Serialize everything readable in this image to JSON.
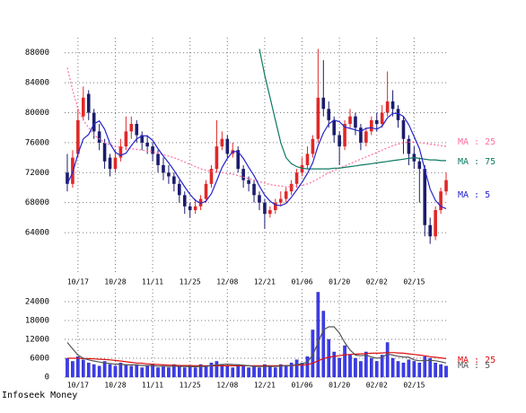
{
  "footer": "Infoseek Money",
  "chart_data": [
    {
      "type": "candlestick",
      "categories": [
        null,
        null,
        "10/17",
        null,
        null,
        null,
        null,
        null,
        null,
        "10/28",
        null,
        null,
        null,
        null,
        null,
        null,
        "11/11",
        null,
        null,
        null,
        null,
        null,
        null,
        "11/25",
        null,
        null,
        null,
        null,
        null,
        null,
        "12/08",
        null,
        null,
        null,
        null,
        null,
        null,
        "12/21",
        null,
        null,
        null,
        null,
        null,
        null,
        "01/06",
        null,
        null,
        null,
        null,
        null,
        null,
        "01/20",
        null,
        null,
        null,
        null,
        null,
        null,
        "02/02",
        null,
        null,
        null,
        null,
        null,
        null,
        "02/15",
        null,
        null,
        null,
        null,
        null,
        null
      ],
      "open": [
        72000,
        70500,
        74500,
        79500,
        82500,
        80000,
        77500,
        76000,
        74000,
        72500,
        74000,
        75500,
        77500,
        78500,
        77000,
        76000,
        75500,
        74500,
        73000,
        72000,
        71500,
        70500,
        69000,
        67500,
        67000,
        67500,
        68500,
        70500,
        72500,
        75500,
        76500,
        74500,
        75000,
        72500,
        71000,
        70500,
        69000,
        68000,
        66500,
        67000,
        68000,
        68500,
        69500,
        70500,
        72000,
        73000,
        74500,
        76500,
        82000,
        80500,
        79000,
        77000,
        75500,
        78500,
        79500,
        78000,
        76000,
        77500,
        79000,
        78500,
        80000,
        81500,
        80500,
        79000,
        76500,
        74500,
        73500,
        72500,
        65000,
        63500,
        67000,
        69500
      ],
      "high": [
        74500,
        75000,
        80500,
        83500,
        83000,
        80500,
        78500,
        76500,
        74500,
        75000,
        76500,
        79500,
        79500,
        79000,
        77500,
        77000,
        76000,
        75000,
        74000,
        73000,
        72000,
        71000,
        69500,
        68000,
        68500,
        69000,
        71000,
        73000,
        79000,
        77500,
        77000,
        76000,
        75500,
        73000,
        71500,
        71000,
        69500,
        68500,
        67500,
        68500,
        69500,
        70000,
        71000,
        72500,
        74000,
        75500,
        77000,
        88500,
        87000,
        81500,
        79500,
        77500,
        79000,
        80500,
        80000,
        78500,
        78000,
        79500,
        80000,
        81000,
        85500,
        83000,
        81000,
        79500,
        77000,
        75500,
        74000,
        73000,
        66000,
        67500,
        70000,
        72000
      ],
      "low": [
        69500,
        70000,
        74000,
        79000,
        79000,
        76500,
        75000,
        72500,
        71500,
        72000,
        73500,
        75000,
        76500,
        76000,
        75000,
        74500,
        73500,
        72000,
        71000,
        70500,
        69500,
        68000,
        66500,
        66000,
        66500,
        67000,
        68000,
        70000,
        72000,
        75000,
        74000,
        74000,
        72000,
        70000,
        69500,
        68000,
        67000,
        64500,
        66000,
        66500,
        67500,
        68000,
        69000,
        70000,
        71500,
        72500,
        74000,
        76000,
        79500,
        78000,
        76000,
        73000,
        75000,
        78000,
        77000,
        75000,
        75500,
        77000,
        77500,
        78000,
        79500,
        79500,
        78000,
        74500,
        73000,
        72500,
        68000,
        63500,
        62500,
        63000,
        66500,
        69000
      ],
      "close": [
        70500,
        74000,
        79000,
        82000,
        80000,
        77500,
        76000,
        73500,
        72500,
        74000,
        75500,
        77500,
        78500,
        77000,
        76000,
        75500,
        74500,
        73000,
        72000,
        71500,
        70500,
        69000,
        67500,
        67000,
        67500,
        68500,
        70500,
        72500,
        75500,
        76500,
        74500,
        75000,
        72500,
        71000,
        70500,
        69000,
        68000,
        66500,
        67000,
        68000,
        68500,
        69500,
        70500,
        72000,
        73000,
        74500,
        76500,
        82000,
        80500,
        79000,
        77000,
        75500,
        78500,
        79500,
        78000,
        76000,
        77500,
        79000,
        78500,
        80000,
        81500,
        80500,
        79000,
        76500,
        74500,
        73500,
        72500,
        65000,
        63500,
        67000,
        69500,
        71000
      ],
      "up_color": "#e02828",
      "down_color": "#1c1c6e",
      "series": [
        {
          "name": "MA : 25",
          "color": "#ff6f9c",
          "dashed": true,
          "values": [
            86000,
            83000,
            80500,
            79000,
            78000,
            77000,
            76500,
            76000,
            75700,
            75500,
            75400,
            75300,
            75200,
            75100,
            75000,
            74900,
            74800,
            74600,
            74400,
            74200,
            74000,
            73700,
            73400,
            73100,
            72800,
            72500,
            72300,
            72200,
            72100,
            72000,
            71900,
            71800,
            71600,
            71400,
            71200,
            71000,
            70800,
            70600,
            70400,
            70300,
            70200,
            70100,
            70100,
            70200,
            70300,
            70500,
            70800,
            71200,
            71600,
            72000,
            72300,
            72600,
            72900,
            73200,
            73500,
            73800,
            74100,
            74400,
            74700,
            75000,
            75300,
            75600,
            75800,
            76000,
            76100,
            76100,
            76000,
            75900,
            75800,
            75700,
            75600,
            75500
          ]
        },
        {
          "name": "MA : 75",
          "color": "#0e7a62",
          "values": [
            null,
            null,
            null,
            null,
            null,
            null,
            null,
            null,
            null,
            null,
            null,
            null,
            null,
            null,
            null,
            null,
            null,
            null,
            null,
            null,
            null,
            null,
            null,
            null,
            null,
            null,
            null,
            null,
            null,
            null,
            null,
            null,
            null,
            null,
            null,
            null,
            88500,
            85000,
            82000,
            79000,
            76000,
            74000,
            73200,
            72800,
            72600,
            72500,
            72500,
            72500,
            72500,
            72500,
            72600,
            72600,
            72700,
            72800,
            72900,
            73000,
            73100,
            73200,
            73300,
            73400,
            73500,
            73600,
            73700,
            73800,
            73900,
            74000,
            73900,
            73800,
            73700,
            73700,
            73600,
            73600
          ]
        },
        {
          "name": "MA : 5",
          "color": "#2424cc",
          "values": [
            70500,
            72000,
            74500,
            76500,
            77100,
            78500,
            78900,
            77800,
            75900,
            74700,
            74300,
            74600,
            75600,
            76500,
            76900,
            76900,
            76300,
            75200,
            74200,
            73300,
            72300,
            71200,
            70100,
            69100,
            68300,
            67900,
            68200,
            69200,
            70900,
            72700,
            73900,
            74800,
            74800,
            73900,
            72700,
            71600,
            70200,
            69000,
            68200,
            67700,
            67600,
            67900,
            68700,
            69700,
            70700,
            71900,
            73300,
            75600,
            77300,
            78500,
            79000,
            78800,
            78100,
            77900,
            77700,
            77500,
            77900,
            78000,
            77800,
            78200,
            79300,
            79900,
            79900,
            79500,
            78400,
            76800,
            75200,
            72400,
            69800,
            68300,
            67500,
            67200
          ]
        }
      ],
      "ylim": [
        58500,
        90000
      ],
      "yticks": [
        64000,
        68000,
        72000,
        76000,
        80000,
        84000,
        88000
      ],
      "grid": true
    },
    {
      "type": "bar",
      "categories": [
        null,
        null,
        "10/17",
        null,
        null,
        null,
        null,
        null,
        null,
        "10/28",
        null,
        null,
        null,
        null,
        null,
        null,
        "11/11",
        null,
        null,
        null,
        null,
        null,
        null,
        "11/25",
        null,
        null,
        null,
        null,
        null,
        null,
        "12/08",
        null,
        null,
        null,
        null,
        null,
        null,
        "12/21",
        null,
        null,
        null,
        null,
        null,
        null,
        "01/06",
        null,
        null,
        null,
        null,
        null,
        null,
        "01/20",
        null,
        null,
        null,
        null,
        null,
        null,
        "02/02",
        null,
        null,
        null,
        null,
        null,
        null,
        "02/15",
        null,
        null,
        null,
        null,
        null,
        null
      ],
      "values": [
        6000,
        5000,
        6500,
        5500,
        4500,
        4000,
        3500,
        5000,
        4000,
        3500,
        4500,
        4000,
        3500,
        4000,
        3000,
        3500,
        4000,
        3000,
        3500,
        3000,
        4000,
        3500,
        3000,
        3500,
        3000,
        4000,
        3500,
        4500,
        5000,
        4000,
        3500,
        3000,
        4000,
        3500,
        3000,
        3500,
        3000,
        4000,
        3500,
        3000,
        4000,
        3500,
        4500,
        5500,
        4500,
        6500,
        15000,
        27000,
        21000,
        12000,
        8000,
        6000,
        10000,
        7000,
        6000,
        5000,
        8000,
        6000,
        5000,
        7000,
        11000,
        6000,
        5000,
        4500,
        5500,
        5000,
        4500,
        6500,
        6000,
        4500,
        4000,
        3500
      ],
      "color": "#3c3cf0",
      "series": [
        {
          "name": "MA : 25",
          "color": "#dd1010",
          "values": [
            6000,
            6000,
            6000,
            5900,
            5900,
            5800,
            5700,
            5600,
            5500,
            5300,
            5100,
            4900,
            4700,
            4500,
            4400,
            4200,
            4100,
            4000,
            3900,
            3800,
            3800,
            3700,
            3700,
            3700,
            3600,
            3600,
            3600,
            3600,
            3600,
            3600,
            3600,
            3600,
            3600,
            3600,
            3600,
            3600,
            3600,
            3600,
            3600,
            3600,
            3600,
            3700,
            3700,
            3800,
            3800,
            4000,
            4400,
            5200,
            5900,
            6300,
            6600,
            6800,
            7100,
            7200,
            7300,
            7400,
            7500,
            7600,
            7600,
            7700,
            7800,
            7800,
            7700,
            7600,
            7400,
            7200,
            7000,
            6800,
            6500,
            6300,
            6100,
            5900
          ]
        },
        {
          "name": "MA : 5",
          "color": "#555555",
          "values": [
            11000,
            9000,
            7000,
            6000,
            5500,
            5100,
            4800,
            4500,
            4300,
            4100,
            4100,
            3900,
            3900,
            3900,
            3700,
            3700,
            3600,
            3500,
            3500,
            3400,
            3500,
            3400,
            3400,
            3300,
            3300,
            3400,
            3400,
            3700,
            3900,
            4000,
            4100,
            4000,
            3900,
            3800,
            3600,
            3400,
            3400,
            3400,
            3400,
            3400,
            3500,
            3600,
            3700,
            4000,
            4200,
            4800,
            7000,
            11000,
            15000,
            16000,
            16000,
            14000,
            11000,
            8600,
            7000,
            6800,
            7000,
            6400,
            6000,
            6200,
            7400,
            7000,
            6600,
            6400,
            6300,
            5500,
            5200,
            5300,
            5300,
            5200,
            4900,
            4500
          ]
        }
      ],
      "ylim": [
        0,
        28000
      ],
      "yticks": [
        0,
        6000,
        12000,
        18000,
        24000
      ],
      "grid": true
    }
  ]
}
